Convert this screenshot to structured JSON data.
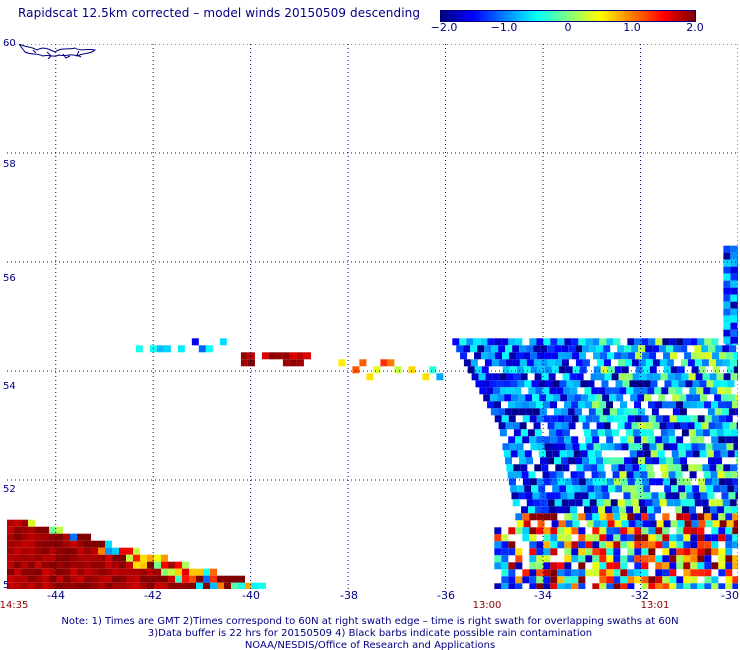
{
  "title": "Rapidscat 12.5km corrected – model winds 20150509 descending",
  "colorbar": {
    "labels": [
      "−2.0",
      "−1.0",
      "0",
      "1.0",
      "2.0"
    ],
    "colors": [
      "#00007f",
      "#0000ff",
      "#007fff",
      "#00ffff",
      "#7fff7f",
      "#ffff00",
      "#ff7f00",
      "#ff0000",
      "#7f0000"
    ],
    "range": [
      -2.0,
      2.0
    ]
  },
  "map": {
    "lon_range": [
      -45,
      -30
    ],
    "lat_range": [
      50,
      60
    ],
    "lat_labels": [
      "60",
      "58",
      "56",
      "54",
      "52",
      "5"
    ],
    "lon_labels": [
      "-44",
      "-42",
      "-40",
      "-38",
      "-36",
      "-34",
      "-32",
      "-30"
    ],
    "time_labels": [
      "14:35",
      "13:00",
      "13:01"
    ],
    "grid": "dotted",
    "grid_color": "#000080",
    "coastline": "Greenland (southern tip)"
  },
  "notes": [
    "Note: 1) Times are GMT 2)Times correspond to 60N at right swath edge – time is right swath for overlapping swaths at 60N",
    "3)Data buffer is 22 hrs for 20150509 4) Black barbs indicate possible rain contamination",
    "NOAA/NESDIS/Office of Research and Applications"
  ]
}
